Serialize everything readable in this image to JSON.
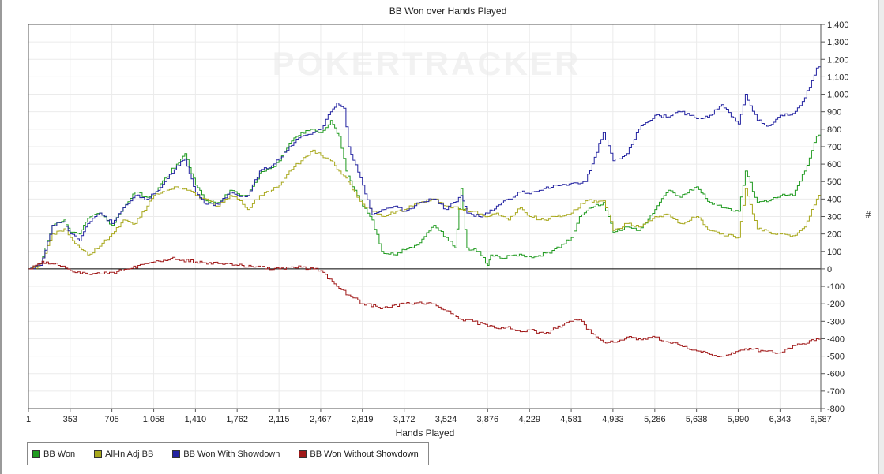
{
  "chart_data": {
    "type": "line",
    "title": "BB Won over Hands Played",
    "xlabel": "Hands Played",
    "ylabel": "#",
    "watermark": "POKERTRACKER",
    "x_ticks": [
      "1",
      "353",
      "705",
      "1,058",
      "1,410",
      "1,762",
      "2,115",
      "2,467",
      "2,819",
      "3,172",
      "3,524",
      "3,876",
      "4,229",
      "4,581",
      "4,933",
      "5,286",
      "5,638",
      "5,990",
      "6,343",
      "6,687"
    ],
    "y_ticks": [
      "1,400",
      "1,300",
      "1,200",
      "1,100",
      "1,000",
      "900",
      "800",
      "700",
      "600",
      "500",
      "400",
      "300",
      "200",
      "100",
      "0",
      "-100",
      "-200",
      "-300",
      "-400",
      "-500",
      "-600",
      "-700",
      "-800"
    ],
    "xlim": [
      1,
      6687
    ],
    "ylim": [
      -800,
      1400
    ],
    "grid": true,
    "legend_position": "bottom-left",
    "series": [
      {
        "name": "BB Won",
        "color": "#1f9a1f",
        "points": [
          [
            1,
            0
          ],
          [
            100,
            30
          ],
          [
            200,
            250
          ],
          [
            300,
            280
          ],
          [
            353,
            210
          ],
          [
            430,
            200
          ],
          [
            500,
            290
          ],
          [
            600,
            320
          ],
          [
            705,
            250
          ],
          [
            800,
            350
          ],
          [
            900,
            440
          ],
          [
            1000,
            410
          ],
          [
            1058,
            420
          ],
          [
            1150,
            520
          ],
          [
            1250,
            600
          ],
          [
            1320,
            660
          ],
          [
            1410,
            480
          ],
          [
            1500,
            390
          ],
          [
            1600,
            380
          ],
          [
            1700,
            450
          ],
          [
            1762,
            430
          ],
          [
            1850,
            420
          ],
          [
            1950,
            550
          ],
          [
            2050,
            580
          ],
          [
            2115,
            620
          ],
          [
            2200,
            720
          ],
          [
            2300,
            780
          ],
          [
            2400,
            800
          ],
          [
            2467,
            780
          ],
          [
            2550,
            850
          ],
          [
            2620,
            760
          ],
          [
            2680,
            560
          ],
          [
            2750,
            450
          ],
          [
            2819,
            360
          ],
          [
            2900,
            280
          ],
          [
            2980,
            100
          ],
          [
            3100,
            80
          ],
          [
            3172,
            110
          ],
          [
            3300,
            150
          ],
          [
            3420,
            250
          ],
          [
            3524,
            180
          ],
          [
            3600,
            120
          ],
          [
            3650,
            460
          ],
          [
            3700,
            120
          ],
          [
            3800,
            100
          ],
          [
            3876,
            20
          ],
          [
            3900,
            80
          ],
          [
            4000,
            60
          ],
          [
            4100,
            80
          ],
          [
            4229,
            70
          ],
          [
            4400,
            90
          ],
          [
            4500,
            140
          ],
          [
            4581,
            180
          ],
          [
            4650,
            300
          ],
          [
            4750,
            350
          ],
          [
            4850,
            380
          ],
          [
            4933,
            210
          ],
          [
            5050,
            240
          ],
          [
            5150,
            220
          ],
          [
            5286,
            340
          ],
          [
            5400,
            450
          ],
          [
            5500,
            410
          ],
          [
            5638,
            470
          ],
          [
            5750,
            380
          ],
          [
            5850,
            350
          ],
          [
            5990,
            330
          ],
          [
            6050,
            560
          ],
          [
            6150,
            380
          ],
          [
            6250,
            390
          ],
          [
            6343,
            420
          ],
          [
            6450,
            420
          ],
          [
            6550,
            560
          ],
          [
            6650,
            760
          ],
          [
            6687,
            790
          ]
        ]
      },
      {
        "name": "All-In Adj BB",
        "color": "#a8a81c",
        "points": [
          [
            1,
            0
          ],
          [
            100,
            20
          ],
          [
            200,
            200
          ],
          [
            300,
            230
          ],
          [
            353,
            180
          ],
          [
            430,
            120
          ],
          [
            500,
            80
          ],
          [
            600,
            130
          ],
          [
            705,
            200
          ],
          [
            800,
            280
          ],
          [
            900,
            260
          ],
          [
            1000,
            360
          ],
          [
            1058,
            420
          ],
          [
            1150,
            440
          ],
          [
            1250,
            470
          ],
          [
            1320,
            460
          ],
          [
            1410,
            420
          ],
          [
            1500,
            400
          ],
          [
            1600,
            360
          ],
          [
            1700,
            420
          ],
          [
            1762,
            400
          ],
          [
            1850,
            340
          ],
          [
            1950,
            420
          ],
          [
            2050,
            450
          ],
          [
            2115,
            480
          ],
          [
            2200,
            560
          ],
          [
            2300,
            620
          ],
          [
            2400,
            680
          ],
          [
            2467,
            650
          ],
          [
            2550,
            620
          ],
          [
            2620,
            560
          ],
          [
            2680,
            520
          ],
          [
            2750,
            440
          ],
          [
            2819,
            370
          ],
          [
            2900,
            330
          ],
          [
            3000,
            300
          ],
          [
            3100,
            330
          ],
          [
            3172,
            340
          ],
          [
            3300,
            380
          ],
          [
            3420,
            400
          ],
          [
            3524,
            360
          ],
          [
            3650,
            340
          ],
          [
            3750,
            330
          ],
          [
            3876,
            300
          ],
          [
            3950,
            320
          ],
          [
            4050,
            280
          ],
          [
            4150,
            350
          ],
          [
            4229,
            300
          ],
          [
            4350,
            280
          ],
          [
            4450,
            300
          ],
          [
            4581,
            320
          ],
          [
            4700,
            390
          ],
          [
            4850,
            390
          ],
          [
            4933,
            220
          ],
          [
            5050,
            260
          ],
          [
            5150,
            240
          ],
          [
            5286,
            300
          ],
          [
            5400,
            310
          ],
          [
            5500,
            260
          ],
          [
            5638,
            300
          ],
          [
            5750,
            220
          ],
          [
            5850,
            200
          ],
          [
            5990,
            180
          ],
          [
            6050,
            460
          ],
          [
            6150,
            230
          ],
          [
            6250,
            210
          ],
          [
            6343,
            200
          ],
          [
            6450,
            190
          ],
          [
            6550,
            240
          ],
          [
            6650,
            400
          ],
          [
            6687,
            440
          ]
        ]
      },
      {
        "name": "BB Won With Showdown",
        "color": "#2222a0",
        "points": [
          [
            1,
            0
          ],
          [
            100,
            20
          ],
          [
            200,
            250
          ],
          [
            300,
            270
          ],
          [
            353,
            200
          ],
          [
            430,
            160
          ],
          [
            500,
            260
          ],
          [
            600,
            320
          ],
          [
            705,
            260
          ],
          [
            800,
            350
          ],
          [
            900,
            420
          ],
          [
            1000,
            400
          ],
          [
            1058,
            430
          ],
          [
            1150,
            500
          ],
          [
            1250,
            590
          ],
          [
            1320,
            630
          ],
          [
            1410,
            440
          ],
          [
            1500,
            370
          ],
          [
            1600,
            370
          ],
          [
            1700,
            440
          ],
          [
            1762,
            420
          ],
          [
            1850,
            420
          ],
          [
            1950,
            560
          ],
          [
            2050,
            590
          ],
          [
            2115,
            630
          ],
          [
            2200,
            700
          ],
          [
            2300,
            760
          ],
          [
            2400,
            780
          ],
          [
            2467,
            800
          ],
          [
            2550,
            900
          ],
          [
            2600,
            950
          ],
          [
            2660,
            920
          ],
          [
            2700,
            700
          ],
          [
            2819,
            480
          ],
          [
            2900,
            310
          ],
          [
            3000,
            340
          ],
          [
            3100,
            360
          ],
          [
            3172,
            330
          ],
          [
            3300,
            380
          ],
          [
            3420,
            400
          ],
          [
            3524,
            340
          ],
          [
            3650,
            420
          ],
          [
            3700,
            320
          ],
          [
            3800,
            300
          ],
          [
            3876,
            320
          ],
          [
            3950,
            360
          ],
          [
            4050,
            400
          ],
          [
            4150,
            440
          ],
          [
            4229,
            430
          ],
          [
            4350,
            460
          ],
          [
            4450,
            480
          ],
          [
            4581,
            490
          ],
          [
            4700,
            500
          ],
          [
            4850,
            780
          ],
          [
            4933,
            620
          ],
          [
            5050,
            660
          ],
          [
            5150,
            800
          ],
          [
            5286,
            880
          ],
          [
            5400,
            870
          ],
          [
            5500,
            900
          ],
          [
            5638,
            860
          ],
          [
            5750,
            880
          ],
          [
            5850,
            940
          ],
          [
            5990,
            830
          ],
          [
            6050,
            1000
          ],
          [
            6150,
            850
          ],
          [
            6250,
            820
          ],
          [
            6343,
            880
          ],
          [
            6450,
            890
          ],
          [
            6550,
            980
          ],
          [
            6650,
            1150
          ],
          [
            6687,
            1150
          ]
        ]
      },
      {
        "name": "BB Won Without Showdown",
        "color": "#a01818",
        "points": [
          [
            1,
            0
          ],
          [
            80,
            30
          ],
          [
            150,
            40
          ],
          [
            250,
            20
          ],
          [
            353,
            -10
          ],
          [
            500,
            -30
          ],
          [
            705,
            -20
          ],
          [
            850,
            0
          ],
          [
            1000,
            30
          ],
          [
            1058,
            40
          ],
          [
            1200,
            60
          ],
          [
            1410,
            40
          ],
          [
            1600,
            30
          ],
          [
            1762,
            20
          ],
          [
            1900,
            10
          ],
          [
            2115,
            0
          ],
          [
            2300,
            10
          ],
          [
            2467,
            -10
          ],
          [
            2600,
            -100
          ],
          [
            2700,
            -150
          ],
          [
            2819,
            -200
          ],
          [
            2950,
            -220
          ],
          [
            3050,
            -220
          ],
          [
            3172,
            -200
          ],
          [
            3300,
            -190
          ],
          [
            3400,
            -200
          ],
          [
            3524,
            -240
          ],
          [
            3650,
            -290
          ],
          [
            3750,
            -300
          ],
          [
            3876,
            -330
          ],
          [
            3950,
            -340
          ],
          [
            4050,
            -330
          ],
          [
            4150,
            -360
          ],
          [
            4229,
            -350
          ],
          [
            4350,
            -370
          ],
          [
            4450,
            -340
          ],
          [
            4581,
            -300
          ],
          [
            4650,
            -290
          ],
          [
            4750,
            -370
          ],
          [
            4850,
            -420
          ],
          [
            4933,
            -420
          ],
          [
            5050,
            -390
          ],
          [
            5150,
            -400
          ],
          [
            5286,
            -390
          ],
          [
            5400,
            -420
          ],
          [
            5500,
            -440
          ],
          [
            5638,
            -470
          ],
          [
            5750,
            -490
          ],
          [
            5850,
            -500
          ],
          [
            5990,
            -470
          ],
          [
            6100,
            -460
          ],
          [
            6200,
            -470
          ],
          [
            6343,
            -480
          ],
          [
            6450,
            -440
          ],
          [
            6550,
            -430
          ],
          [
            6650,
            -400
          ],
          [
            6687,
            -390
          ]
        ]
      }
    ]
  }
}
